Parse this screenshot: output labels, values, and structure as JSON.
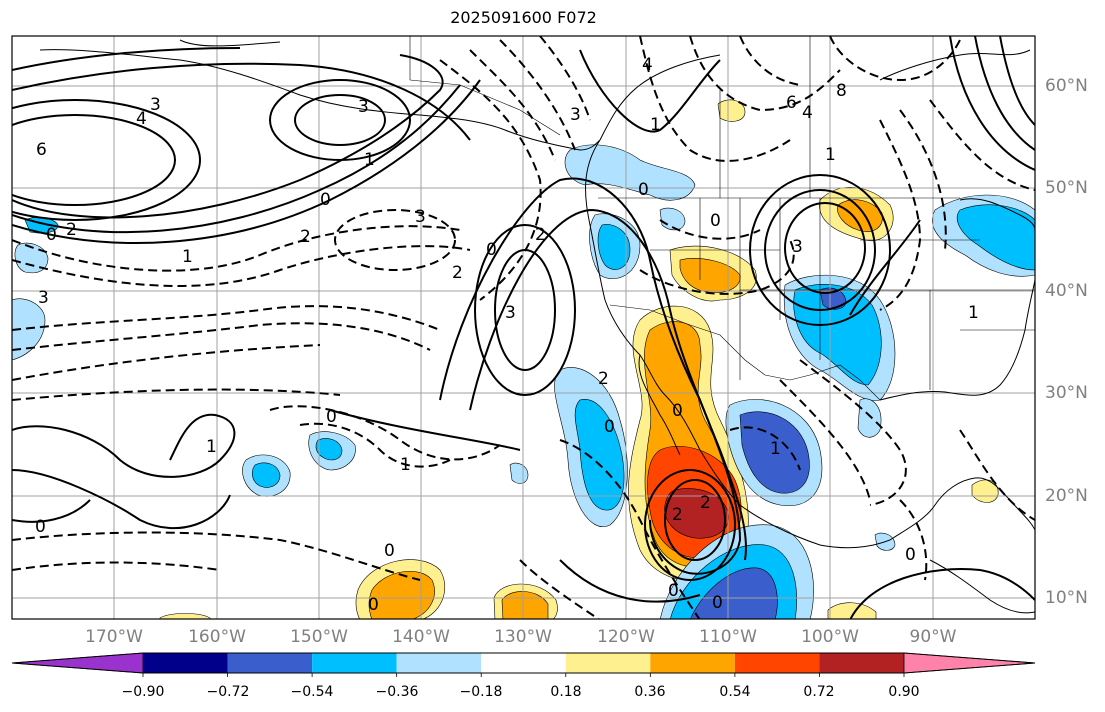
{
  "title": "2025091600 F072",
  "lat_labels": [
    "60°N",
    "50°N",
    "40°N",
    "30°N",
    "20°N",
    "10°N"
  ],
  "lon_labels": [
    "170°W",
    "160°W",
    "150°W",
    "140°W",
    "130°W",
    "120°W",
    "110°W",
    "100°W",
    "90°W"
  ],
  "colorbar": {
    "ticks": [
      "−0.90",
      "−0.72",
      "−0.54",
      "−0.36",
      "−0.18",
      "0.18",
      "0.36",
      "0.54",
      "0.72",
      "0.90"
    ],
    "colors": [
      "#9a32cd",
      "#00008b",
      "#3a5fcd",
      "#00bfff",
      "#b0e2ff",
      "#ffffff",
      "#fff08f",
      "#ffa500",
      "#ff4500",
      "#b22222",
      "#ff82ab"
    ]
  },
  "contour_labels": [
    "3",
    "3",
    "4",
    "6",
    "1",
    "2",
    "0",
    "1",
    "3",
    "2",
    "0",
    "3",
    "0",
    "2",
    "3",
    "4",
    "1",
    "0",
    "2",
    "0",
    "3",
    "6",
    "4",
    "8",
    "1",
    "1",
    "1",
    "0",
    "2",
    "1",
    "0",
    "0",
    "1",
    "2",
    "2",
    "0",
    "0",
    "0",
    "0",
    "0",
    "0",
    "3"
  ]
}
